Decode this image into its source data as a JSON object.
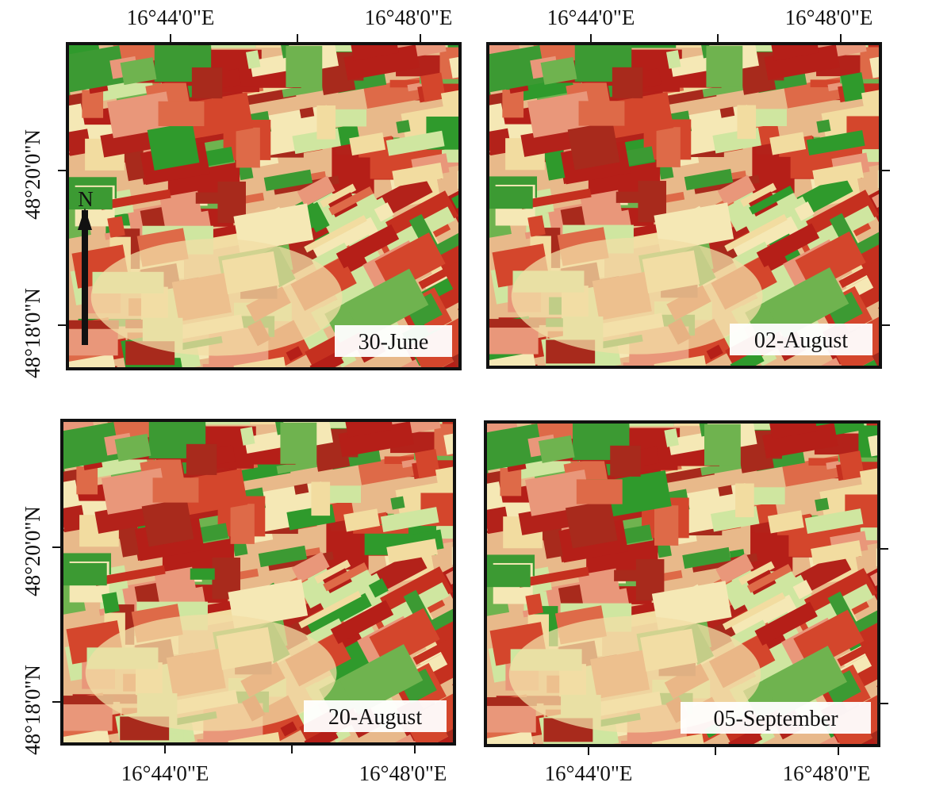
{
  "panels": [
    {
      "date": "30-June",
      "x_labels": [
        "16°44'0\"E",
        "16°48'0\"E"
      ],
      "y_labels": [
        "48°20'0\"N",
        "48°18'0\"N"
      ]
    },
    {
      "date": "02-August",
      "x_labels": [
        "16°44'0\"E",
        "16°48'0\"E"
      ]
    },
    {
      "date": "20-August",
      "x_labels": [
        "16°44'0\"E",
        "16°48'0\"E"
      ],
      "y_labels": [
        "48°20'0\"N",
        "48°18'0\"N"
      ]
    },
    {
      "date": "05-September",
      "x_labels": [
        "16°44'0\"E",
        "16°48'0\"E"
      ]
    }
  ],
  "north_label": "N"
}
